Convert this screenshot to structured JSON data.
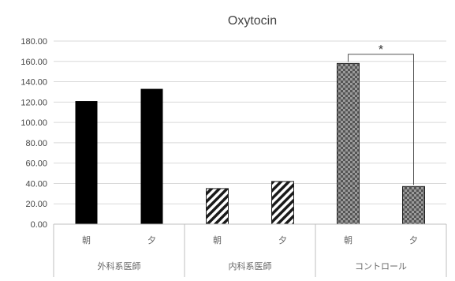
{
  "chart_data": {
    "type": "bar",
    "title": "Oxytocin",
    "ylim": [
      0,
      180
    ],
    "y_ticks": [
      "0.00",
      "20.00",
      "40.00",
      "60.00",
      "80.00",
      "100.00",
      "120.00",
      "140.00",
      "160.00",
      "180.00"
    ],
    "grid": true,
    "groups": [
      {
        "name": "外科系医師",
        "pattern": "solid",
        "bars": [
          {
            "category": "朝",
            "value": 121
          },
          {
            "category": "夕",
            "value": 133
          }
        ]
      },
      {
        "name": "内科系医師",
        "pattern": "diagonal-stripes",
        "bars": [
          {
            "category": "朝",
            "value": 35
          },
          {
            "category": "夕",
            "value": 42
          }
        ]
      },
      {
        "name": "コントロール",
        "pattern": "checkered",
        "bars": [
          {
            "category": "朝",
            "value": 158
          },
          {
            "category": "夕",
            "value": 37
          }
        ]
      }
    ],
    "annotations": [
      {
        "text": "*",
        "type": "significance-bracket",
        "group": "コントロール",
        "between": [
          "朝",
          "夕"
        ],
        "level": 167
      }
    ]
  },
  "colors": {
    "solid": "#000000",
    "stripe": "#1a1a1a",
    "checker_dark": "#555555",
    "checker_light": "#9a9a9a",
    "grid": "#d9d9d9",
    "axis": "#bfbfbf"
  }
}
